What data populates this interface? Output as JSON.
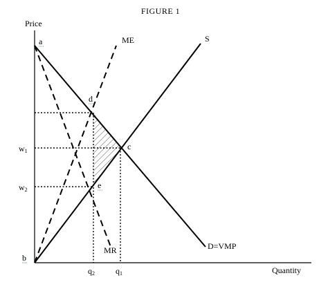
{
  "figure": {
    "title": "FIGURE 1"
  },
  "axes": {
    "y_label": "Price",
    "x_label": "Quantity"
  },
  "curves": {
    "supply": "S",
    "marginal_expenditure": "ME",
    "demand": "D=VMP",
    "marginal_revenue": "MR"
  },
  "points": {
    "a": "a",
    "b": "b",
    "c": "c",
    "d": "d",
    "e": "e"
  },
  "y_ticks": {
    "w1_base": "w",
    "w1_sub": "1",
    "w2_base": "w",
    "w2_sub": "2"
  },
  "x_ticks": {
    "q2_base": "q",
    "q2_sub": "2",
    "q1_base": "q",
    "q1_sub": "1"
  }
}
